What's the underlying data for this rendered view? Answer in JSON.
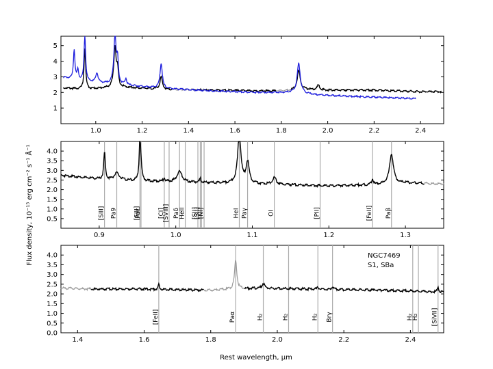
{
  "figure": {
    "ylabel": "Flux density, 10⁻¹⁵  erg  cm⁻²  s⁻¹  Å⁻¹",
    "xlabel": "Rest wavelength, μm",
    "object_name": "NGC7469",
    "object_class": "S1,  SBa"
  },
  "chart_data": [
    {
      "type": "line",
      "panel": "top",
      "xlim": [
        0.85,
        2.5
      ],
      "ylim": [
        0,
        5.6
      ],
      "xticks": [
        1.0,
        1.2,
        1.4,
        1.6,
        1.8,
        2.0,
        2.2,
        2.4
      ],
      "yticks": [
        1,
        2,
        3,
        4,
        5
      ],
      "tick_labels_x": [
        "1.0",
        "1.2",
        "1.4",
        "1.6",
        "1.8",
        "2.0",
        "2.2",
        "2.4"
      ],
      "tick_labels_y": [
        "1",
        "2",
        "3",
        "4",
        "5"
      ],
      "colors": {
        "black": "#000000",
        "blue": "#1f1fdd",
        "gray": "#999999"
      },
      "continuum_black": {
        "x": [
          0.85,
          0.95,
          1.1,
          1.3,
          1.5,
          1.7,
          1.8,
          1.9,
          2.0,
          2.2,
          2.4,
          2.49
        ],
        "y": [
          2.3,
          2.2,
          2.35,
          2.2,
          2.15,
          2.1,
          2.1,
          2.2,
          2.15,
          2.15,
          2.05,
          2.05
        ]
      },
      "continuum_blue": {
        "x": [
          0.85,
          0.95,
          1.1,
          1.3,
          1.5,
          1.7,
          1.85,
          1.95,
          2.1,
          2.3,
          2.38
        ],
        "y": [
          3.0,
          2.7,
          2.5,
          2.25,
          2.1,
          2.0,
          2.0,
          1.85,
          1.75,
          1.65,
          1.6
        ]
      },
      "lines_black": [
        {
          "x": 0.953,
          "h": 2.7,
          "w": 0.004
        },
        {
          "x": 1.083,
          "h": 2.6,
          "w": 0.006
        },
        {
          "x": 1.094,
          "h": 1.0,
          "w": 0.004
        },
        {
          "x": 1.282,
          "h": 0.8,
          "w": 0.006
        },
        {
          "x": 1.875,
          "h": 1.2,
          "w": 0.008
        },
        {
          "x": 1.96,
          "h": 0.3,
          "w": 0.006
        }
      ],
      "lines_blue": [
        {
          "x": 0.907,
          "h": 1.9,
          "w": 0.004
        },
        {
          "x": 0.923,
          "h": 0.6,
          "w": 0.004
        },
        {
          "x": 0.953,
          "h": 3.0,
          "w": 0.004
        },
        {
          "x": 1.005,
          "h": 0.6,
          "w": 0.006
        },
        {
          "x": 1.083,
          "h": 3.1,
          "w": 0.006
        },
        {
          "x": 1.094,
          "h": 1.4,
          "w": 0.004
        },
        {
          "x": 1.13,
          "h": 0.4,
          "w": 0.004
        },
        {
          "x": 1.282,
          "h": 1.6,
          "w": 0.006
        },
        {
          "x": 1.875,
          "h": 1.9,
          "w": 0.008
        }
      ]
    },
    {
      "type": "line",
      "panel": "middle",
      "xlim": [
        0.85,
        1.35
      ],
      "ylim": [
        0,
        4.5
      ],
      "xticks": [
        0.9,
        1.0,
        1.1,
        1.2,
        1.3
      ],
      "yticks": [
        0.5,
        1.0,
        1.5,
        2.0,
        2.5,
        3.0,
        3.5,
        4.0
      ],
      "tick_labels_x": [
        "0.9",
        "1.0",
        "1.1",
        "1.2",
        "1.3"
      ],
      "tick_labels_y": [
        "0.5",
        "1.0",
        "1.5",
        "2.0",
        "2.5",
        "3.0",
        "3.5",
        "4.0"
      ],
      "continuum": {
        "x": [
          0.85,
          0.9,
          0.95,
          1.0,
          1.05,
          1.1,
          1.15,
          1.2,
          1.25,
          1.3,
          1.35
        ],
        "y": [
          2.75,
          2.55,
          2.45,
          2.4,
          2.35,
          2.3,
          2.25,
          2.2,
          2.25,
          2.35,
          2.3
        ]
      },
      "emission": [
        {
          "x": 0.9069,
          "h": 1.4,
          "w": 0.0012
        },
        {
          "x": 0.9229,
          "h": 0.35,
          "w": 0.004
        },
        {
          "x": 0.9532,
          "h": 2.2,
          "w": 0.0012
        },
        {
          "x": 0.9546,
          "h": 0.4,
          "w": 0.0015
        },
        {
          "x": 0.985,
          "h": 0.2,
          "w": 0.0012
        },
        {
          "x": 1.0049,
          "h": 0.55,
          "w": 0.004
        },
        {
          "x": 1.032,
          "h": 0.2,
          "w": 0.0012
        },
        {
          "x": 1.083,
          "h": 2.6,
          "w": 0.0025
        },
        {
          "x": 1.0938,
          "h": 1.1,
          "w": 0.0025
        },
        {
          "x": 1.1287,
          "h": 0.35,
          "w": 0.003
        },
        {
          "x": 1.257,
          "h": 0.3,
          "w": 0.0012
        },
        {
          "x": 1.2818,
          "h": 1.55,
          "w": 0.003
        }
      ],
      "gray_segment": {
        "x": [
          1.325,
          1.35
        ]
      },
      "line_markers": [
        {
          "x": 0.9069,
          "label": "[SIII]"
        },
        {
          "x": 0.9229,
          "label": "Pa9"
        },
        {
          "x": 0.9532,
          "label": "[SIII]"
        },
        {
          "x": 0.9546,
          "label": "Paε"
        },
        {
          "x": 0.985,
          "label": "[CI]"
        },
        {
          "x": 0.9913,
          "label": "[SVIII]"
        },
        {
          "x": 1.0049,
          "label": "Paδ"
        },
        {
          "x": 1.0124,
          "label": "HeII"
        },
        {
          "x": 1.0289,
          "label": "[SII]"
        },
        {
          "x": 1.032,
          "label": "[SII]"
        },
        {
          "x": 1.0336,
          "label": ""
        },
        {
          "x": 1.037,
          "label": "[NI]"
        },
        {
          "x": 1.083,
          "label": "HeI"
        },
        {
          "x": 1.0938,
          "label": "Paγ"
        },
        {
          "x": 1.1287,
          "label": "OI"
        },
        {
          "x": 1.1886,
          "label": "[PII]"
        },
        {
          "x": 1.257,
          "label": "[FeII]"
        },
        {
          "x": 1.2818,
          "label": "Paβ"
        }
      ]
    },
    {
      "type": "line",
      "panel": "bottom",
      "xlim": [
        1.35,
        2.5
      ],
      "ylim": [
        0,
        4.5
      ],
      "xticks": [
        1.4,
        1.6,
        1.8,
        2.0,
        2.2,
        2.4
      ],
      "yticks": [
        0.0,
        0.5,
        1.0,
        1.5,
        2.0,
        2.5,
        3.0,
        3.5,
        4.0
      ],
      "tick_labels_x": [
        "1.4",
        "1.6",
        "1.8",
        "2.0",
        "2.2",
        "2.4"
      ],
      "tick_labels_y": [
        "0.0",
        "0.5",
        "1.0",
        "1.5",
        "2.0",
        "2.5",
        "3.0",
        "3.5",
        "4.0"
      ],
      "continuum": {
        "x": [
          1.35,
          1.45,
          1.6,
          1.75,
          1.8,
          1.95,
          2.1,
          2.3,
          2.49
        ],
        "y": [
          2.3,
          2.25,
          2.25,
          2.2,
          2.2,
          2.3,
          2.25,
          2.2,
          2.1
        ]
      },
      "emission": [
        {
          "x": 1.644,
          "h": 0.25,
          "w": 0.002
        },
        {
          "x": 1.875,
          "h": 1.5,
          "w": 0.004
        },
        {
          "x": 1.958,
          "h": 0.25,
          "w": 0.004
        },
        {
          "x": 2.122,
          "h": 0.15,
          "w": 0.002
        },
        {
          "x": 2.166,
          "h": 0.12,
          "w": 0.003
        },
        {
          "x": 2.483,
          "h": 0.3,
          "w": 0.002
        }
      ],
      "gray_segments": [
        {
          "x": [
            1.35,
            1.44
          ]
        },
        {
          "x": [
            1.78,
            1.9
          ]
        }
      ],
      "line_markers": [
        {
          "x": 1.644,
          "label": "[FeII]"
        },
        {
          "x": 1.875,
          "label": "Paα"
        },
        {
          "x": 1.958,
          "label": "H₂"
        },
        {
          "x": 2.034,
          "label": "H₂"
        },
        {
          "x": 2.122,
          "label": "H₂"
        },
        {
          "x": 2.166,
          "label": "Brγ"
        },
        {
          "x": 2.407,
          "label": "H₂"
        },
        {
          "x": 2.424,
          "label": "H₂"
        },
        {
          "x": 2.483,
          "label": "[SiVII]"
        }
      ]
    }
  ]
}
